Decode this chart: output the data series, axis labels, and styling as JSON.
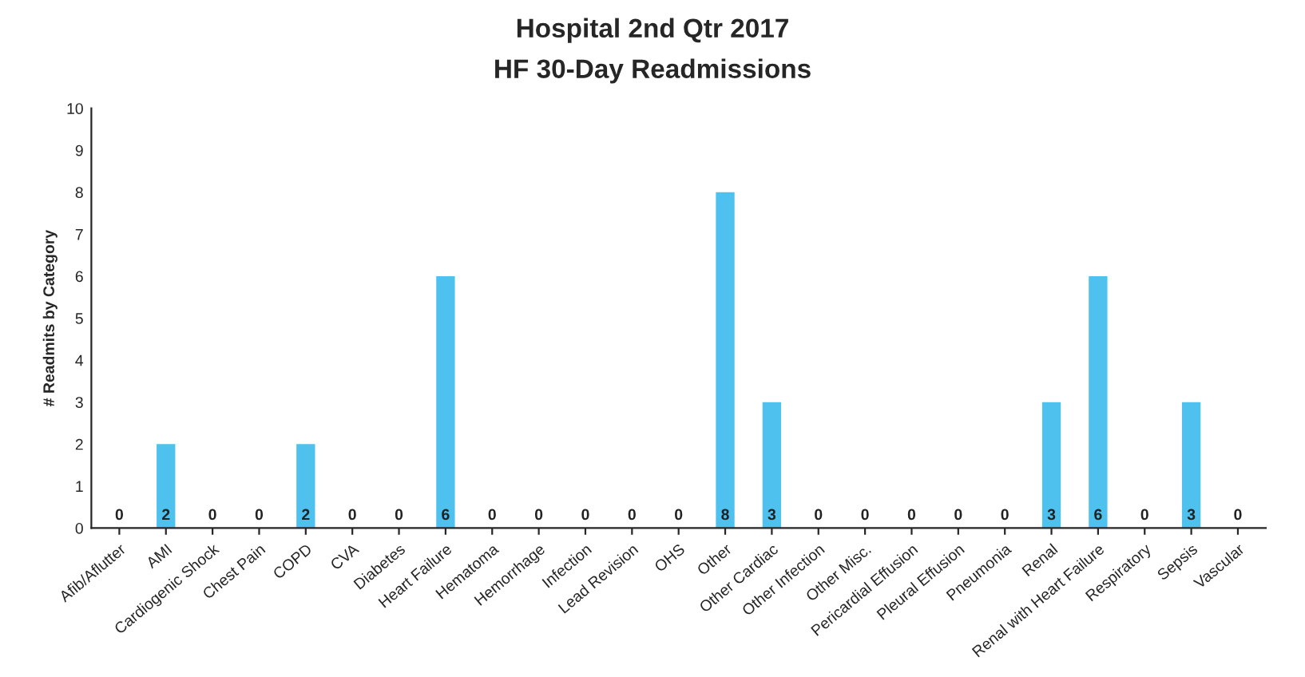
{
  "chart_data": {
    "type": "bar",
    "title": "Hospital 2nd Qtr 2017",
    "subtitle": "HF 30-Day Readmissions",
    "ylabel": "# Readmits by Category",
    "categories": [
      "Afib/Aflutter",
      "AMI",
      "Cardiogenic Shock",
      "Chest Pain",
      "COPD",
      "CVA",
      "Diabetes",
      "Heart Failure",
      "Hematoma",
      "Hemorrhage",
      "Infection",
      "Lead Revision",
      "OHS",
      "Other",
      "Other Cardiac",
      "Other Infection",
      "Other Misc.",
      "Pericardial Effusion",
      "Pleural Effusion",
      "Pneumonia",
      "Renal",
      "Renal with Heart Failure",
      "Respiratory",
      "Sepsis",
      "Vascular"
    ],
    "values": [
      0,
      2,
      0,
      0,
      2,
      0,
      0,
      6,
      0,
      0,
      0,
      0,
      0,
      8,
      3,
      0,
      0,
      0,
      0,
      0,
      3,
      6,
      0,
      3,
      0
    ],
    "color": "#4fc1ee",
    "ylim": [
      0,
      10
    ],
    "yticks": [
      0,
      1,
      2,
      3,
      4,
      5,
      6,
      7,
      8,
      9,
      10
    ],
    "grid": false,
    "data_labels": true
  }
}
